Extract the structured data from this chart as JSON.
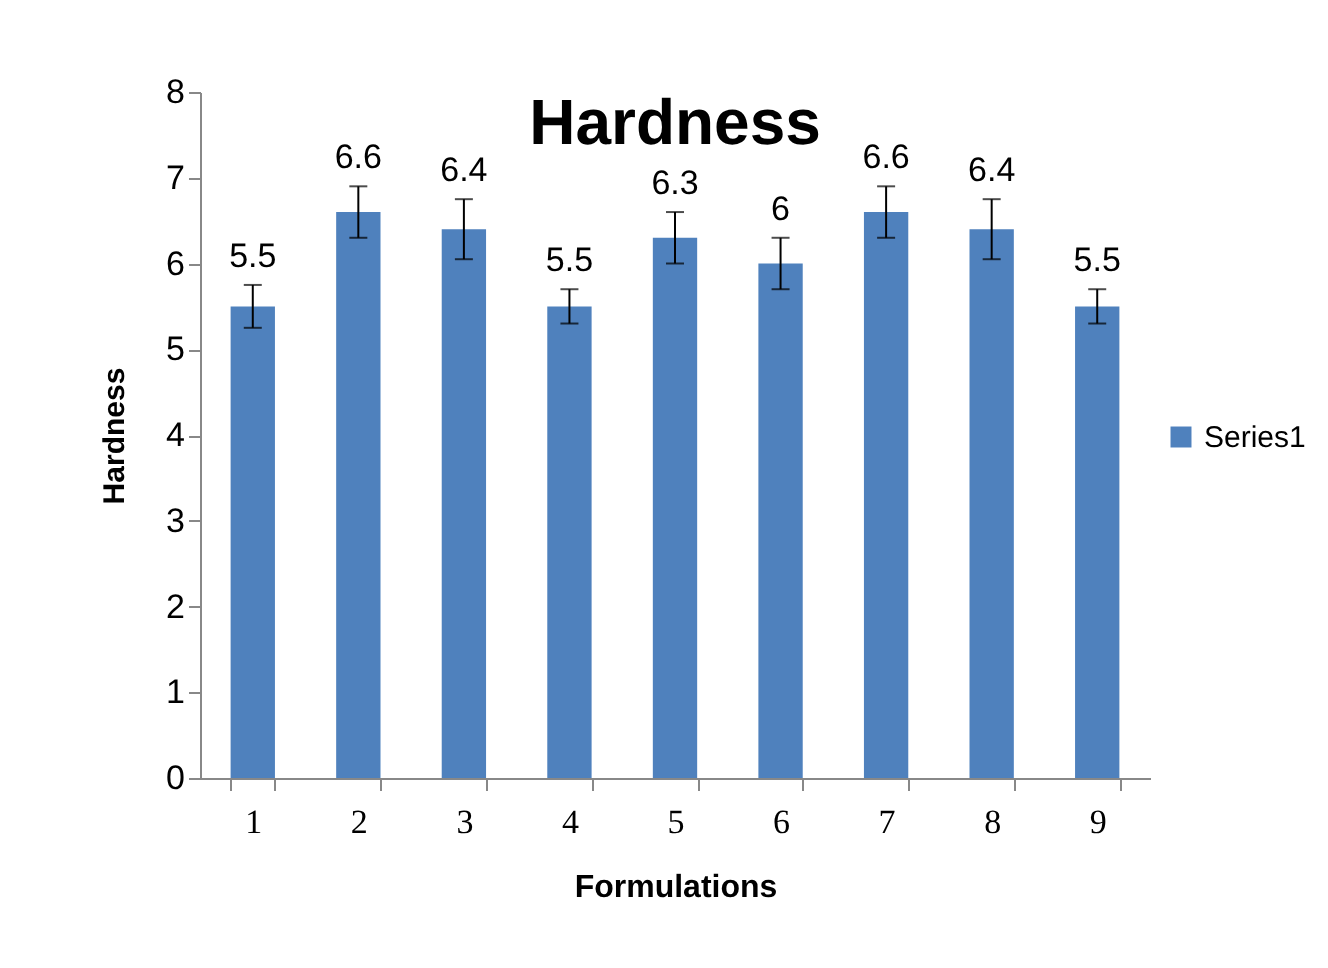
{
  "chart_data": {
    "type": "bar",
    "title": "Hardness",
    "xlabel": "Formulations",
    "ylabel": "Hardness",
    "categories": [
      "1",
      "2",
      "3",
      "4",
      "5",
      "6",
      "7",
      "8",
      "9"
    ],
    "series": [
      {
        "name": "Series1",
        "color": "#4f81bd",
        "values": [
          5.5,
          6.6,
          6.4,
          5.5,
          6.3,
          6,
          6.6,
          6.4,
          5.5
        ],
        "errors": [
          0.25,
          0.3,
          0.35,
          0.2,
          0.3,
          0.3,
          0.3,
          0.35,
          0.2
        ]
      }
    ],
    "ylim": [
      0,
      8
    ],
    "yticks": [
      0,
      1,
      2,
      3,
      4,
      5,
      6,
      7,
      8
    ],
    "data_labels": true,
    "grid": false,
    "legend": "right"
  }
}
